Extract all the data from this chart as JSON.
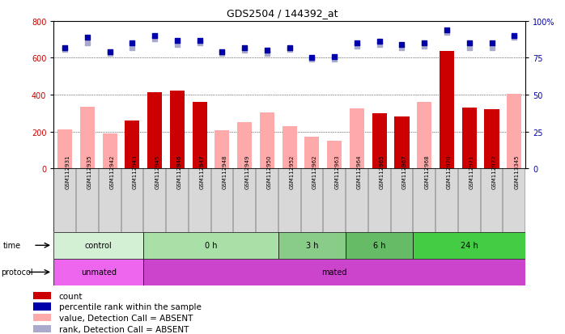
{
  "title": "GDS2504 / 144392_at",
  "samples": [
    "GSM112931",
    "GSM112935",
    "GSM112942",
    "GSM112943",
    "GSM112945",
    "GSM112946",
    "GSM112947",
    "GSM112948",
    "GSM112949",
    "GSM112950",
    "GSM112952",
    "GSM112962",
    "GSM112963",
    "GSM112964",
    "GSM112965",
    "GSM112967",
    "GSM112968",
    "GSM112970",
    "GSM112971",
    "GSM112972",
    "GSM113345"
  ],
  "red_bars": [
    0,
    0,
    0,
    260,
    415,
    420,
    360,
    0,
    0,
    0,
    0,
    0,
    0,
    0,
    300,
    280,
    0,
    635,
    330,
    320,
    0
  ],
  "pink_bars": [
    210,
    335,
    190,
    0,
    0,
    0,
    0,
    205,
    250,
    305,
    230,
    170,
    150,
    325,
    0,
    0,
    360,
    0,
    0,
    0,
    405
  ],
  "blue_dots_pct": [
    82,
    89,
    79,
    85,
    90,
    87,
    87,
    79,
    82,
    80,
    82,
    75,
    76,
    85,
    86,
    84,
    85,
    94,
    85,
    85,
    90
  ],
  "light_blue_dots_pct": [
    81,
    85,
    78,
    82,
    88,
    84,
    85,
    78,
    80,
    78,
    81,
    74,
    74,
    83,
    84,
    82,
    83,
    92,
    82,
    82,
    89
  ],
  "time_groups": [
    {
      "label": "control",
      "start": 0,
      "end": 4,
      "color": "#d4f0d4"
    },
    {
      "label": "0 h",
      "start": 4,
      "end": 10,
      "color": "#a8e0a8"
    },
    {
      "label": "3 h",
      "start": 10,
      "end": 13,
      "color": "#88cc88"
    },
    {
      "label": "6 h",
      "start": 13,
      "end": 16,
      "color": "#66bb66"
    },
    {
      "label": "24 h",
      "start": 16,
      "end": 21,
      "color": "#44cc44"
    }
  ],
  "protocol_groups": [
    {
      "label": "unmated",
      "start": 0,
      "end": 4,
      "color": "#ee66ee"
    },
    {
      "label": "mated",
      "start": 4,
      "end": 21,
      "color": "#cc44cc"
    }
  ],
  "ylim_left": [
    0,
    800
  ],
  "ylim_right": [
    0,
    100
  ],
  "yticks_left": [
    0,
    200,
    400,
    600,
    800
  ],
  "yticks_right": [
    0,
    25,
    50,
    75,
    100
  ],
  "red_color": "#cc0000",
  "pink_color": "#ffaaaa",
  "blue_color": "#0000aa",
  "light_blue_color": "#aaaacc",
  "bar_width": 0.65,
  "dot_size": 22
}
